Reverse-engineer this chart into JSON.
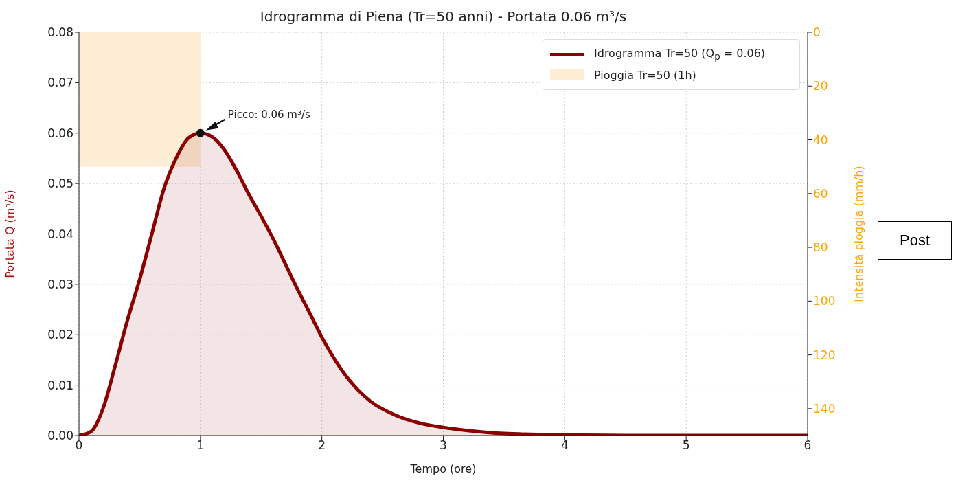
{
  "chart_data": {
    "type": "area",
    "title": "Idrogramma di Piena (Tr=50 anni) - Portata 0.06 m³/s",
    "xlabel": "Tempo (ore)",
    "ylabel": "Portata Q (m³/s)",
    "y2label": "Intensità pioggia (mm/h)",
    "xlim": [
      0,
      6
    ],
    "xticks": [
      0,
      1,
      2,
      3,
      4,
      5,
      6
    ],
    "ylim": [
      0,
      0.08
    ],
    "yticks": [
      {
        "value": 0,
        "label": "0.00"
      },
      {
        "value": 0.01,
        "label": "0.01"
      },
      {
        "value": 0.02,
        "label": "0.02"
      },
      {
        "value": 0.03,
        "label": "0.03"
      },
      {
        "value": 0.04,
        "label": "0.04"
      },
      {
        "value": 0.05,
        "label": "0.05"
      },
      {
        "value": 0.06,
        "label": "0.06"
      },
      {
        "value": 0.07,
        "label": "0.07"
      },
      {
        "value": 0.08,
        "label": "0.08"
      }
    ],
    "y2lim": [
      150,
      0
    ],
    "y2ticks": [
      0,
      20,
      40,
      60,
      80,
      100,
      120,
      140
    ],
    "series": [
      {
        "name": "Idrogramma Tr=50 (Q$_{p}$ = 0.06)",
        "color": "#8b0000",
        "x": [
          0,
          0.1,
          0.2,
          0.3,
          0.4,
          0.5,
          0.6,
          0.7,
          0.8,
          0.9,
          1,
          1.1,
          1.2,
          1.3,
          1.4,
          1.5,
          1.6,
          1.7,
          1.8,
          1.9,
          2,
          2.2,
          2.4,
          2.6,
          2.8,
          3,
          3.2,
          3.5,
          4,
          4.5,
          5,
          5.5,
          6
        ],
        "values": [
          0,
          0.0008,
          0.0055,
          0.014,
          0.023,
          0.031,
          0.04,
          0.049,
          0.055,
          0.059,
          0.06,
          0.0592,
          0.0566,
          0.0525,
          0.0478,
          0.0435,
          0.039,
          0.034,
          0.029,
          0.0243,
          0.0195,
          0.0118,
          0.0068,
          0.0041,
          0.0025,
          0.0016,
          0.001,
          0.0004,
          0.0001,
          0,
          0,
          0,
          0
        ]
      },
      {
        "name": "Pioggia Tr=50 (1h)",
        "type": "bar",
        "axis": "y2",
        "color": "#fdedd5",
        "x": [
          0.5
        ],
        "values": [
          50
        ]
      }
    ],
    "annotations": [
      {
        "text": "Picco: 0.06 m³/s",
        "x": 1,
        "y": 0.06
      },
      "Post"
    ],
    "grid": true,
    "legend": "top right"
  }
}
